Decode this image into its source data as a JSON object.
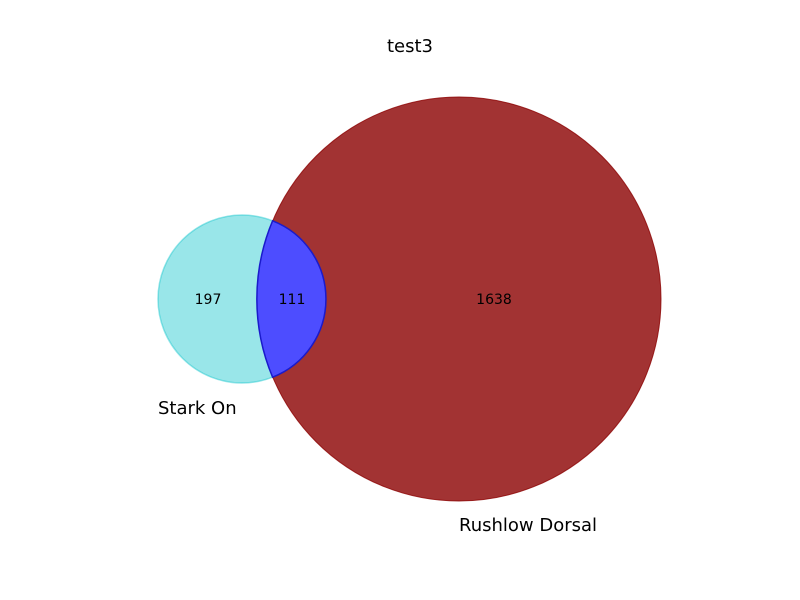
{
  "title": "test3",
  "sets": [
    {
      "name": "Stark On",
      "color": "#00c0c8"
    },
    {
      "name": "Rushlow Dorsal",
      "color": "#8b0000"
    }
  ],
  "regions": {
    "only_a": "197",
    "intersection": "111",
    "only_b": "1638"
  },
  "intersection_color": "#4d4dff",
  "intersection_edge_color": "#1a1acc"
}
